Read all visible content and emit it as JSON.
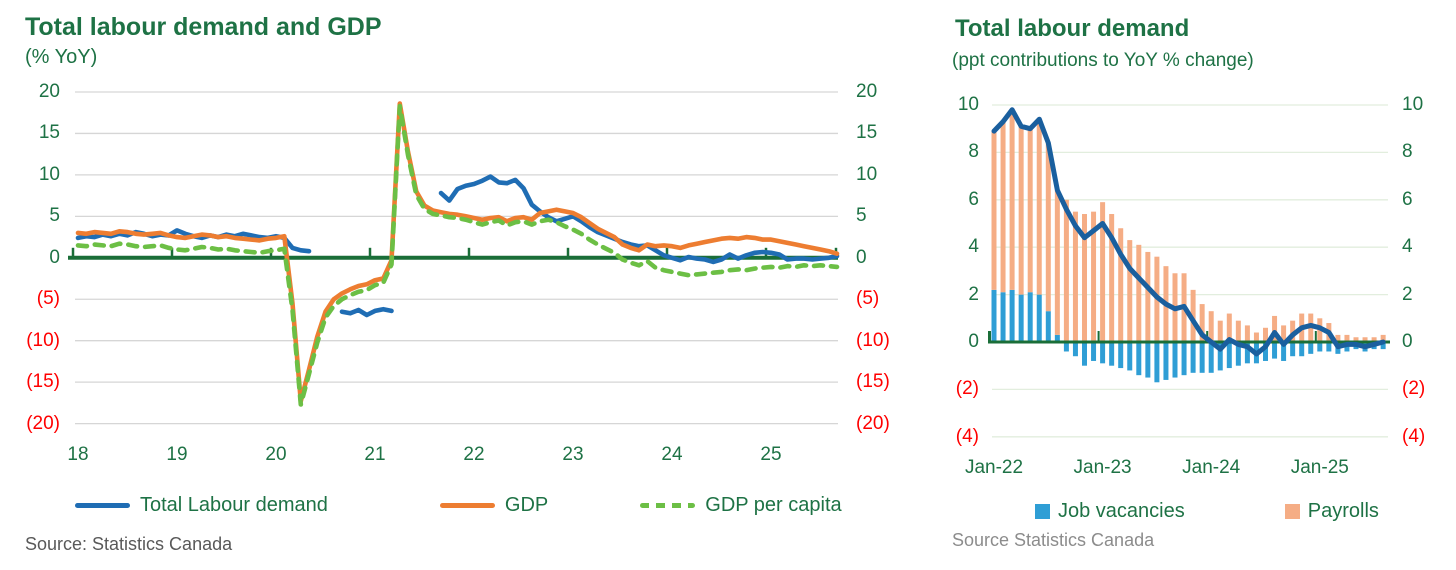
{
  "left_chart": {
    "title": "Total labour demand and GDP",
    "subtitle": "(% YoY)",
    "source": "Source: Statistics Canada",
    "legend": [
      {
        "label": "Total Labour demand",
        "color": "#1f6db4",
        "style": "solid"
      },
      {
        "label": "GDP",
        "color": "#ed7d31",
        "style": "solid"
      },
      {
        "label": "GDP per capita",
        "color": "#6cbf45",
        "style": "dashed"
      }
    ]
  },
  "right_chart": {
    "title": "Total labour demand",
    "subtitle": "(ppt contributions to YoY % change)",
    "source": "Source Statistics Canada",
    "legend": [
      {
        "label": "Job vacancies",
        "color": "#2f9ed5"
      },
      {
        "label": "Payrolls",
        "color": "#f5ad85"
      }
    ]
  },
  "colors": {
    "title_green": "#1e7245",
    "negative_red": "#ff0000",
    "zero_axis_green": "#1a6e38",
    "gridline_left": "#d6d6d6",
    "gridline_right": "#e2eede",
    "labour_demand_blue": "#1f6db4",
    "gdp_orange": "#ed7d31",
    "gdp_per_capita_green": "#6cbf45",
    "total_line_navy": "#1a5f9e",
    "vacancies_bar_blue": "#2f9ed5",
    "payrolls_bar_peach": "#f5ad85"
  },
  "chart_data": [
    {
      "type": "line",
      "title": "Total labour demand and GDP",
      "subtitle": "(% YoY)",
      "x_start": "Jan-2018",
      "freq": "monthly",
      "x_tick_labels": [
        "18",
        "19",
        "20",
        "21",
        "22",
        "23",
        "24",
        "25"
      ],
      "y_tick_labels": [
        "20",
        "15",
        "10",
        "5",
        "0",
        "(5)",
        "(10)",
        "(15)",
        "(20)"
      ],
      "y_tick_values": [
        20,
        15,
        10,
        5,
        0,
        -5,
        -10,
        -15,
        -20
      ],
      "ylim": [
        -20,
        20
      ],
      "grid": "horizontal",
      "legend_position": "bottom",
      "series": [
        {
          "name": "Total Labour demand",
          "color": "#1f6db4",
          "dash": false,
          "values": [
            2.4,
            2.6,
            2.5,
            2.8,
            2.6,
            2.9,
            2.7,
            3.1,
            2.9,
            2.6,
            2.8,
            2.7,
            3.3,
            2.9,
            2.6,
            2.4,
            2.7,
            2.5,
            2.8,
            2.6,
            2.9,
            2.7,
            2.5,
            2.4,
            2.6,
            2.4,
            1.2,
            0.9,
            0.8,
            null,
            null,
            null,
            -6.5,
            -6.7,
            -6.3,
            -6.9,
            -6.4,
            -6.2,
            -6.4,
            null,
            null,
            null,
            null,
            null,
            7.8,
            6.9,
            8.3,
            8.7,
            8.9,
            9.3,
            9.8,
            9.1,
            9.0,
            9.4,
            8.4,
            6.4,
            5.6,
            4.9,
            4.4,
            4.7,
            5.0,
            4.4,
            3.7,
            3.1,
            2.7,
            2.3,
            1.9,
            1.6,
            1.4,
            1.5,
            0.9,
            0.3,
            0.0,
            -0.3,
            0.1,
            -0.1,
            -0.2,
            -0.5,
            -0.2,
            0.4,
            -0.1,
            0.3,
            0.6,
            0.7,
            0.6,
            0.4,
            -0.2,
            -0.1,
            -0.1,
            -0.2,
            -0.1,
            0.0,
            0.2
          ]
        },
        {
          "name": "GDP",
          "color": "#ed7d31",
          "dash": false,
          "values": [
            3.0,
            2.9,
            3.1,
            3.0,
            2.9,
            3.2,
            3.1,
            2.9,
            2.8,
            2.9,
            3.0,
            2.7,
            2.5,
            2.4,
            2.6,
            2.8,
            2.7,
            2.5,
            2.6,
            2.4,
            2.3,
            2.2,
            2.1,
            2.3,
            2.4,
            2.6,
            -5.5,
            -17.3,
            -13.5,
            -9.5,
            -6.5,
            -5.0,
            -4.3,
            -3.8,
            -3.4,
            -3.2,
            -2.7,
            -2.5,
            -0.3,
            18.6,
            12.8,
            8.0,
            6.3,
            5.7,
            5.5,
            5.3,
            5.2,
            5.0,
            4.8,
            4.6,
            4.8,
            4.9,
            4.4,
            4.8,
            4.9,
            4.6,
            5.4,
            5.6,
            5.8,
            5.6,
            5.4,
            4.9,
            4.2,
            3.5,
            3.0,
            2.5,
            1.6,
            1.2,
            0.9,
            1.6,
            1.4,
            1.5,
            1.4,
            1.2,
            1.5,
            1.7,
            1.9,
            2.1,
            2.3,
            2.4,
            2.3,
            2.5,
            2.4,
            2.2,
            2.2,
            2.0,
            1.8,
            1.6,
            1.4,
            1.2,
            1.0,
            0.8,
            0.5
          ]
        },
        {
          "name": "GDP per capita",
          "color": "#6cbf45",
          "dash": true,
          "values": [
            1.5,
            1.4,
            1.6,
            1.5,
            1.4,
            1.7,
            1.6,
            1.4,
            1.3,
            1.4,
            1.5,
            1.2,
            1.0,
            0.9,
            1.1,
            1.3,
            1.2,
            1.0,
            1.1,
            0.9,
            0.8,
            0.7,
            0.6,
            0.8,
            0.9,
            1.1,
            -6.3,
            -17.7,
            -14.0,
            -10.2,
            -7.2,
            -5.8,
            -5.0,
            -4.5,
            -4.1,
            -3.9,
            -3.3,
            -3.0,
            -0.8,
            18.3,
            12.4,
            7.6,
            5.9,
            5.3,
            5.1,
            4.9,
            4.8,
            4.6,
            4.3,
            4.0,
            4.3,
            4.5,
            3.9,
            4.3,
            4.4,
            4.0,
            4.4,
            4.6,
            4.3,
            3.8,
            3.4,
            2.9,
            2.2,
            1.6,
            1.1,
            0.6,
            -0.2,
            -0.6,
            -0.9,
            -0.4,
            -1.2,
            -1.5,
            -1.7,
            -1.9,
            -2.1,
            -2.0,
            -1.9,
            -1.8,
            -1.7,
            -1.5,
            -1.4,
            -1.5,
            -1.3,
            -1.2,
            -1.1,
            -1.2,
            -1.0,
            -1.1,
            -0.9,
            -1.0,
            -0.9,
            -1.0,
            -1.1
          ]
        }
      ]
    },
    {
      "type": "bar",
      "title": "Total labour demand",
      "subtitle": "(ppt contributions to YoY % change)",
      "x_start": "Jan-22",
      "freq": "monthly",
      "x_tick_labels": [
        "Jan-22",
        "Jan-23",
        "Jan-24",
        "Jan-25"
      ],
      "y_tick_labels": [
        "10",
        "8",
        "6",
        "4",
        "2",
        "0",
        "(2)",
        "(4)"
      ],
      "y_tick_values": [
        10,
        8,
        6,
        4,
        2,
        0,
        -2,
        -4
      ],
      "ylim": [
        -4,
        10
      ],
      "grid": "horizontal",
      "legend_position": "bottom",
      "stacked": true,
      "series": [
        {
          "name": "Job vacancies",
          "kind": "bar",
          "color": "#2f9ed5",
          "values": [
            2.2,
            2.1,
            2.2,
            2.0,
            2.1,
            2.0,
            1.3,
            0.3,
            -0.4,
            -0.6,
            -1.0,
            -0.8,
            -0.9,
            -1.0,
            -1.1,
            -1.2,
            -1.4,
            -1.5,
            -1.7,
            -1.6,
            -1.5,
            -1.4,
            -1.3,
            -1.3,
            -1.3,
            -1.2,
            -1.1,
            -1.0,
            -0.9,
            -0.9,
            -0.8,
            -0.7,
            -0.8,
            -0.6,
            -0.6,
            -0.5,
            -0.4,
            -0.4,
            -0.5,
            -0.4,
            -0.3,
            -0.4,
            -0.3,
            -0.3
          ]
        },
        {
          "name": "Payrolls",
          "kind": "bar",
          "color": "#f5ad85",
          "values": [
            6.7,
            7.2,
            7.6,
            7.1,
            6.9,
            7.4,
            7.1,
            6.1,
            6.0,
            5.5,
            5.4,
            5.5,
            5.9,
            5.4,
            4.8,
            4.3,
            4.1,
            3.8,
            3.6,
            3.2,
            2.9,
            2.9,
            2.2,
            1.6,
            1.3,
            0.9,
            1.2,
            0.9,
            0.7,
            0.4,
            0.6,
            1.1,
            0.7,
            0.9,
            1.2,
            1.2,
            1.0,
            0.8,
            0.3,
            0.3,
            0.2,
            0.2,
            0.2,
            0.3
          ]
        },
        {
          "name": "Total labour demand",
          "kind": "line",
          "color": "#1a5f9e",
          "values": [
            8.9,
            9.3,
            9.8,
            9.1,
            9.0,
            9.4,
            8.4,
            6.4,
            5.6,
            4.9,
            4.4,
            4.7,
            5.0,
            4.4,
            3.7,
            3.1,
            2.7,
            2.3,
            1.9,
            1.6,
            1.4,
            1.5,
            0.9,
            0.3,
            0.0,
            -0.3,
            0.1,
            -0.1,
            -0.2,
            -0.5,
            -0.2,
            0.4,
            -0.1,
            0.3,
            0.6,
            0.7,
            0.6,
            0.4,
            -0.2,
            -0.1,
            -0.1,
            -0.2,
            -0.1,
            0.0
          ]
        }
      ]
    }
  ]
}
